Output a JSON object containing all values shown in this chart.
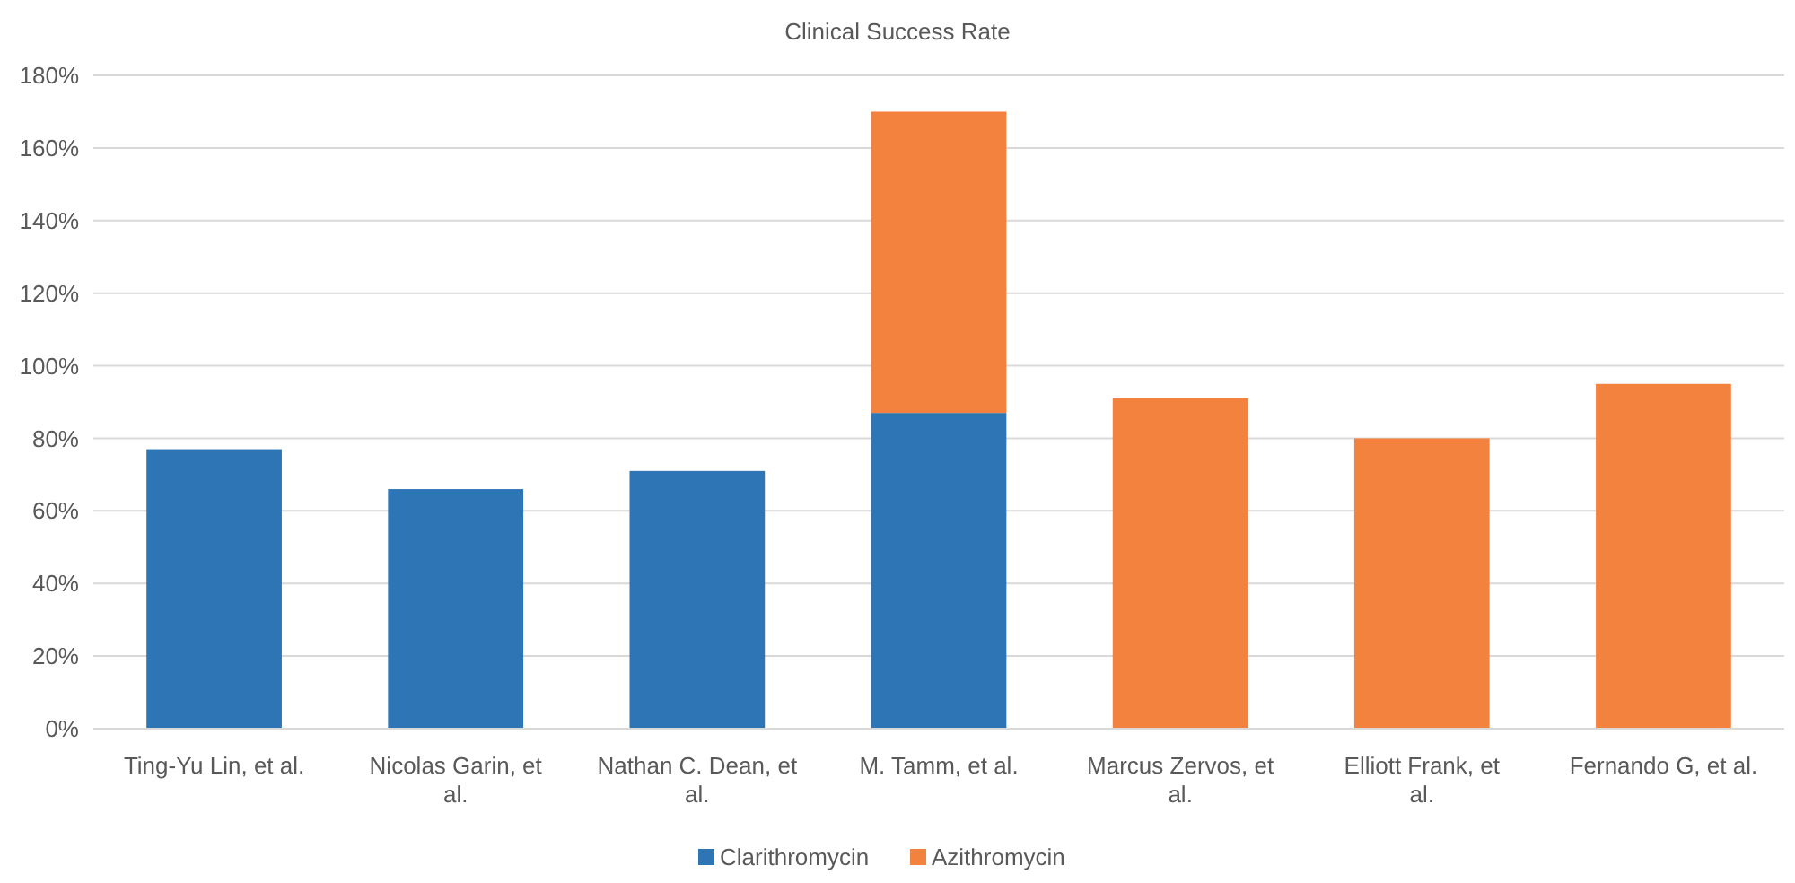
{
  "chart_data": {
    "type": "bar",
    "title": "Clinical Success Rate",
    "stacked": true,
    "grid": "y",
    "legend": "bottom",
    "categories": [
      "Ting-Yu Lin, et al.",
      "Nicolas Garin,  et al.",
      "Nathan C. Dean,  et al.",
      "M. Tamm,  et al.",
      "Marcus Zervos,  et al.",
      "Elliott Frank,  et al.",
      "Fernando G,  et al."
    ],
    "series": [
      {
        "name": "Clarithromycin",
        "color": "#2e75b6",
        "values": [
          77,
          66,
          71,
          87,
          null,
          null,
          null
        ]
      },
      {
        "name": "Azithromycin",
        "color": "#f4823f",
        "values": [
          null,
          null,
          null,
          83,
          91,
          80,
          95
        ]
      }
    ],
    "ylim": [
      0,
      180
    ],
    "yticks": [
      {
        "value": 0,
        "label": "0%"
      },
      {
        "value": 20,
        "label": "20%"
      },
      {
        "value": 40,
        "label": "40%"
      },
      {
        "value": 60,
        "label": "60%"
      },
      {
        "value": 80,
        "label": "80%"
      },
      {
        "value": 100,
        "label": "100%"
      },
      {
        "value": 120,
        "label": "120%"
      },
      {
        "value": 140,
        "label": "140%"
      },
      {
        "value": 160,
        "label": "160%"
      },
      {
        "value": 180,
        "label": "180%"
      }
    ]
  }
}
